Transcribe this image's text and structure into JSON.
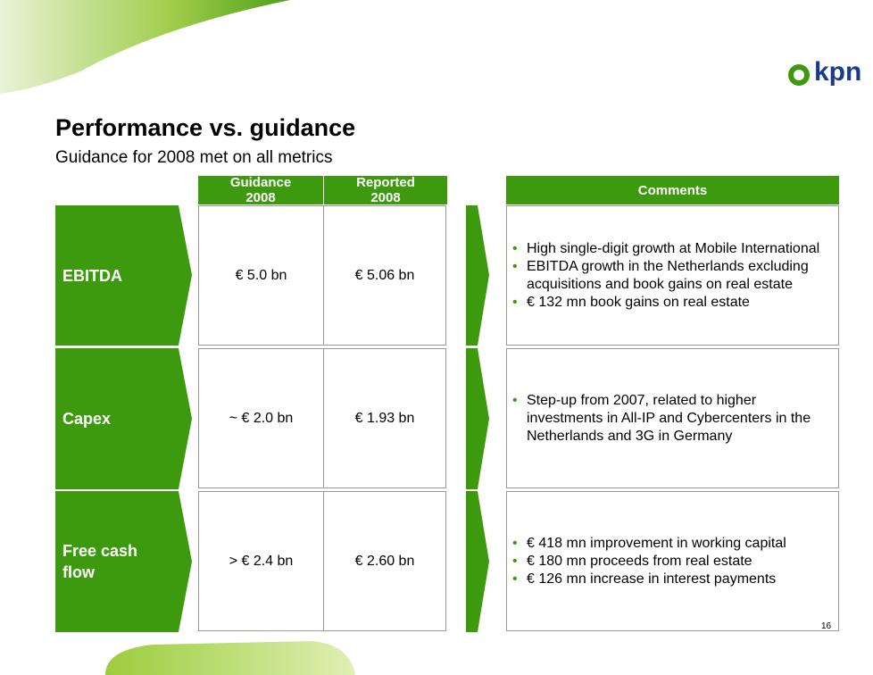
{
  "header": {
    "title": "Performance vs. guidance",
    "subtitle": "Guidance for 2008 met on all metrics",
    "logo": "kpn"
  },
  "table": {
    "columns": [
      "Guidance 2008",
      "Reported 2008"
    ],
    "comments_header": "Comments",
    "rows": [
      {
        "metric": "EBITDA",
        "guidance": "€ 5.0 bn",
        "reported": "€ 5.06 bn",
        "comments": [
          "High single-digit growth at Mobile International",
          "EBITDA growth in the Netherlands excluding acquisitions and book gains on real estate",
          "€ 132 mn book gains on real estate"
        ]
      },
      {
        "metric": "Capex",
        "guidance": "~ € 2.0 bn",
        "reported": "€ 1.93 bn",
        "comments": [
          "Step-up from 2007, related to higher investments in All-IP and Cybercenters in the Netherlands and 3G in Germany"
        ]
      },
      {
        "metric": "Free cash flow",
        "guidance": "> € 2.4 bn",
        "reported": "€ 2.60 bn",
        "comments": [
          "€ 418 mn improvement in working capital",
          "€ 180 mn proceeds from real estate",
          "€ 126 mn increase in interest payments"
        ]
      }
    ]
  },
  "page_number": "16"
}
